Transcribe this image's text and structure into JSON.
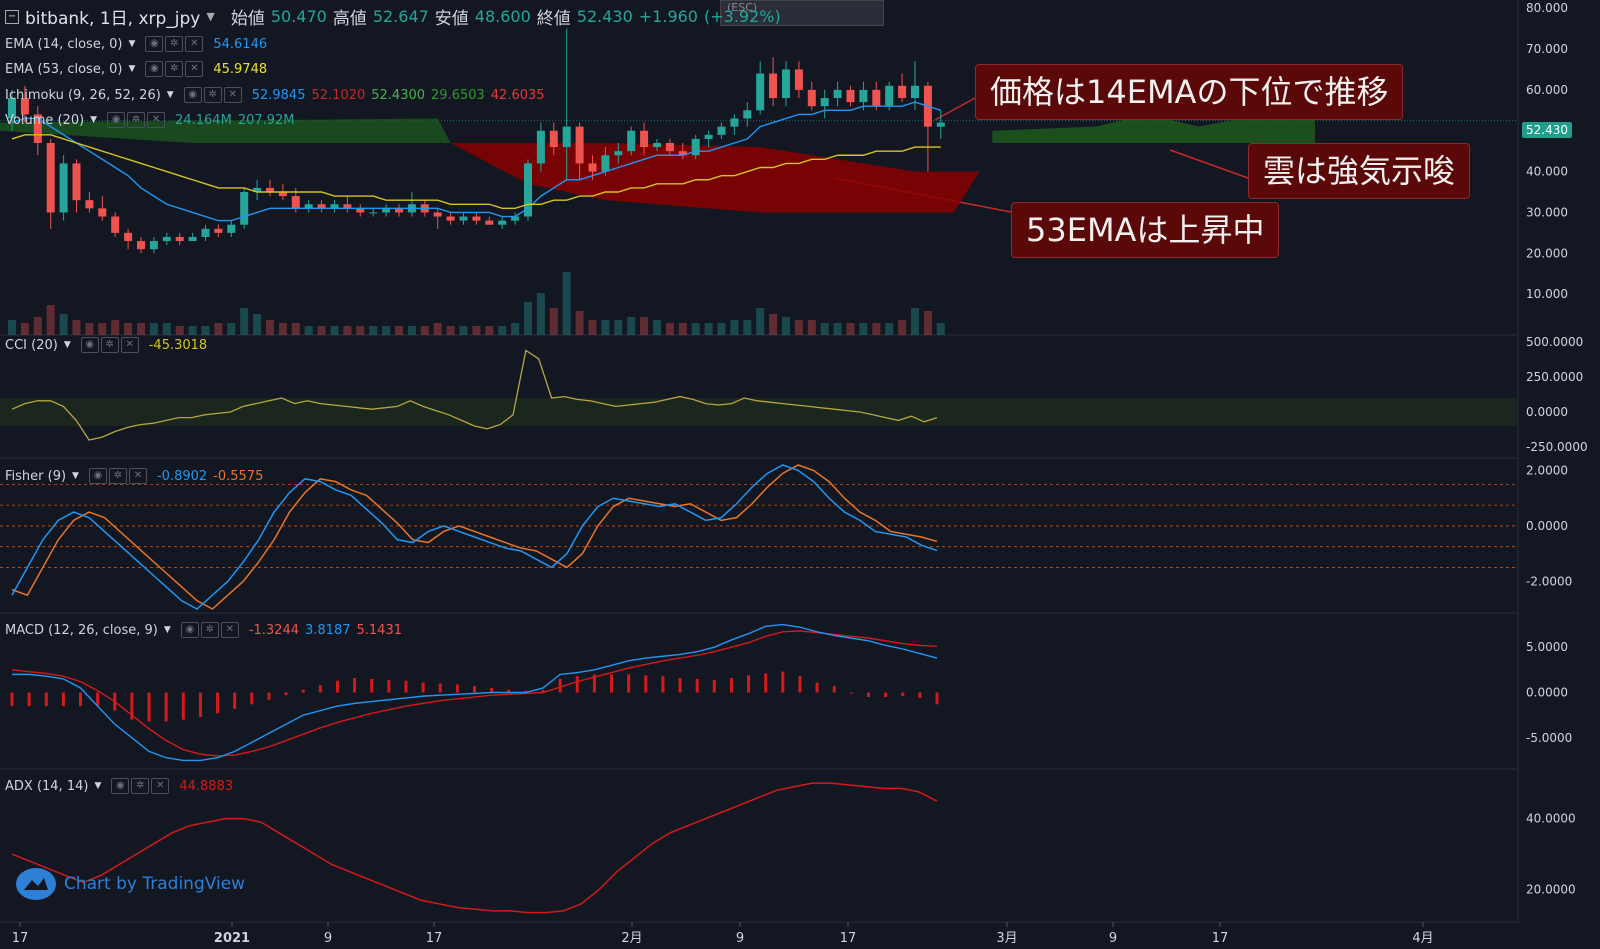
{
  "header": {
    "symbol": "bitbank, 1日, xrp_jpy",
    "open_label": "始値",
    "open": "50.470",
    "high_label": "高値",
    "high": "52.647",
    "low_label": "安値",
    "low": "48.600",
    "close_label": "終値",
    "close": "52.430",
    "change": "+1.960",
    "change_pct": "(+3.92%)",
    "esc_hint": "(ESC)"
  },
  "legend": {
    "ema14": {
      "label": "EMA (14, close, 0)",
      "value": "54.6146"
    },
    "ema53": {
      "label": "EMA (53, close, 0)",
      "value": "45.9748"
    },
    "ichimoku": {
      "label": "Ichimoku (9, 26, 52, 26)",
      "v1": "52.9845",
      "v2": "52.1020",
      "v3": "52.4300",
      "v4": "29.6503",
      "v5": "42.6035"
    },
    "volume": {
      "label": "Volume (20)",
      "v1": "24.164M",
      "v2": "207.92M"
    },
    "cci": {
      "label": "CCI (20)",
      "value": "-45.3018"
    },
    "fisher": {
      "label": "Fisher (9)",
      "v1": "-0.8902",
      "v2": "-0.5575"
    },
    "macd": {
      "label": "MACD (12, 26, close, 9)",
      "v1": "-1.3244",
      "v2": "3.8187",
      "v3": "5.1431"
    },
    "adx": {
      "label": "ADX (14, 14)",
      "value": "44.8883"
    }
  },
  "last_price_tag": "52.430",
  "callouts": {
    "c1": "価格は14EMAの下位で推移",
    "c2": "雲は強気示唆",
    "c3": "53EMAは上昇中"
  },
  "watermark": "Chart by TradingView",
  "colors": {
    "up": "#26a69a",
    "down": "#ef5350",
    "ema14": "#2196f3",
    "ema53": "#d4c423",
    "cloud_bull": "#1e5f1e",
    "cloud_bear": "#8b0000",
    "cci": "#b5a642",
    "fisher1": "#2196f3",
    "fisher2": "#e8742a",
    "adx": "#d41a1a"
  },
  "chart_data": [
    {
      "type": "candlestick",
      "title": "bitbank, 1日, xrp_jpy",
      "x_ticks": [
        "17",
        "2021",
        "9",
        "17",
        "2月",
        "9",
        "17",
        "3月",
        "9",
        "17",
        "4月"
      ],
      "y_ticks": [
        "10.000",
        "20.000",
        "30.000",
        "40.000",
        "50.000",
        "60.000",
        "70.000",
        "80.000"
      ],
      "ylim": [
        0,
        82
      ],
      "candles": [
        [
          53,
          60,
          50,
          58
        ],
        [
          58,
          61,
          52,
          54
        ],
        [
          54,
          56,
          44,
          47
        ],
        [
          47,
          48,
          26,
          30
        ],
        [
          30,
          44,
          28,
          42
        ],
        [
          42,
          43,
          30,
          33
        ],
        [
          33,
          35,
          30,
          31
        ],
        [
          31,
          34,
          28,
          29
        ],
        [
          29,
          30,
          24,
          25
        ],
        [
          25,
          26,
          21,
          23
        ],
        [
          23,
          24,
          20,
          21
        ],
        [
          21,
          24,
          20,
          23
        ],
        [
          23,
          25,
          22,
          24
        ],
        [
          24,
          25,
          22,
          23
        ],
        [
          23,
          25,
          23,
          24
        ],
        [
          24,
          27,
          23,
          26
        ],
        [
          26,
          27,
          24,
          25
        ],
        [
          25,
          28,
          24,
          27
        ],
        [
          27,
          36,
          26,
          35
        ],
        [
          35,
          38,
          33,
          36
        ],
        [
          36,
          38,
          34,
          35
        ],
        [
          35,
          37,
          33,
          34
        ],
        [
          34,
          36,
          30,
          31
        ],
        [
          31,
          33,
          30,
          32
        ],
        [
          32,
          33,
          30,
          31
        ],
        [
          31,
          33,
          30,
          32
        ],
        [
          32,
          34,
          30,
          31
        ],
        [
          31,
          32,
          29,
          30
        ],
        [
          30,
          31,
          29,
          30
        ],
        [
          30,
          32,
          29,
          31
        ],
        [
          31,
          32,
          29,
          30
        ],
        [
          30,
          35,
          29,
          32
        ],
        [
          32,
          33,
          29,
          30
        ],
        [
          30,
          31,
          26,
          29
        ],
        [
          29,
          30,
          27,
          28
        ],
        [
          28,
          30,
          27,
          29
        ],
        [
          29,
          30,
          27,
          28
        ],
        [
          28,
          29,
          27,
          27
        ],
        [
          27,
          29,
          26,
          28
        ],
        [
          28,
          30,
          27,
          29
        ],
        [
          29,
          43,
          28,
          42
        ],
        [
          42,
          52,
          40,
          50
        ],
        [
          50,
          52,
          44,
          46
        ],
        [
          46,
          75,
          38,
          51
        ],
        [
          51,
          52,
          38,
          42
        ],
        [
          42,
          44,
          38,
          40
        ],
        [
          40,
          46,
          39,
          44
        ],
        [
          44,
          47,
          42,
          45
        ],
        [
          45,
          51,
          44,
          50
        ],
        [
          50,
          52,
          44,
          46
        ],
        [
          46,
          48,
          45,
          47
        ],
        [
          47,
          48,
          44,
          45
        ],
        [
          45,
          47,
          43,
          44
        ],
        [
          44,
          49,
          43,
          48
        ],
        [
          48,
          50,
          46,
          49
        ],
        [
          49,
          52,
          48,
          51
        ],
        [
          51,
          54,
          49,
          53
        ],
        [
          53,
          57,
          51,
          55
        ],
        [
          55,
          67,
          54,
          64
        ],
        [
          64,
          68,
          56,
          58
        ],
        [
          58,
          67,
          56,
          65
        ],
        [
          65,
          67,
          58,
          60
        ],
        [
          60,
          62,
          55,
          56
        ],
        [
          56,
          60,
          53,
          58
        ],
        [
          58,
          62,
          56,
          60
        ],
        [
          60,
          61,
          56,
          57
        ],
        [
          57,
          62,
          55,
          60
        ],
        [
          60,
          62,
          55,
          56
        ],
        [
          56,
          62,
          55,
          61
        ],
        [
          61,
          64,
          57,
          58
        ],
        [
          58,
          67,
          55,
          61
        ],
        [
          61,
          62,
          40,
          51
        ],
        [
          51,
          55,
          48,
          52
        ]
      ],
      "series": [
        {
          "name": "EMA (14, close, 0)",
          "values": [
            52,
            53,
            53,
            51,
            49,
            47,
            45,
            43,
            41,
            39,
            36,
            34,
            32,
            31,
            30,
            29,
            28,
            28,
            29,
            30,
            31,
            31,
            31,
            31,
            31,
            31,
            31,
            31,
            31,
            31,
            31,
            31,
            31,
            31,
            30,
            30,
            30,
            30,
            29,
            29,
            31,
            34,
            36,
            38,
            38,
            39,
            40,
            41,
            42,
            43,
            44,
            44,
            44,
            45,
            45,
            46,
            47,
            48,
            51,
            52,
            53,
            54,
            54,
            55,
            55,
            55,
            56,
            56,
            56,
            56,
            57,
            56,
            55
          ]
        },
        {
          "name": "EMA (53, close, 0)",
          "values": [
            48,
            49,
            49,
            49,
            48,
            47,
            46,
            45,
            44,
            43,
            42,
            41,
            40,
            39,
            38,
            37,
            36,
            36,
            36,
            35,
            35,
            35,
            35,
            35,
            35,
            34,
            34,
            34,
            34,
            33,
            33,
            33,
            33,
            33,
            32,
            32,
            32,
            32,
            31,
            31,
            32,
            32,
            33,
            33,
            34,
            34,
            35,
            35,
            36,
            36,
            37,
            37,
            37,
            38,
            38,
            39,
            39,
            40,
            41,
            41,
            42,
            42,
            43,
            43,
            44,
            44,
            44,
            45,
            45,
            45,
            46,
            46,
            46
          ]
        }
      ],
      "volume": [
        5,
        4,
        6,
        10,
        7,
        5,
        4,
        4,
        5,
        4,
        4,
        4,
        4,
        3,
        3,
        3,
        4,
        4,
        9,
        7,
        5,
        4,
        4,
        3,
        3,
        3,
        3,
        3,
        3,
        3,
        3,
        3,
        3,
        4,
        3,
        3,
        3,
        3,
        3,
        4,
        11,
        14,
        9,
        21,
        8,
        5,
        5,
        5,
        6,
        6,
        5,
        4,
        4,
        4,
        4,
        4,
        5,
        5,
        9,
        7,
        6,
        5,
        5,
        4,
        4,
        4,
        4,
        4,
        4,
        5,
        9,
        8,
        4
      ],
      "annotations": [
        "価格は14EMAの下位で推移",
        "雲は強気示唆",
        "53EMAは上昇中"
      ]
    },
    {
      "type": "line",
      "title": "CCI (20)",
      "y_ticks": [
        "500.0000",
        "250.0000",
        "0.0000",
        "-250.0000"
      ],
      "ylim": [
        -300,
        500
      ],
      "values": [
        20,
        60,
        80,
        80,
        40,
        -60,
        -200,
        -180,
        -140,
        -110,
        -90,
        -80,
        -60,
        -40,
        -40,
        -20,
        -10,
        0,
        40,
        60,
        80,
        100,
        60,
        80,
        60,
        50,
        40,
        30,
        20,
        30,
        40,
        80,
        40,
        10,
        -20,
        -60,
        -100,
        -120,
        -90,
        -20,
        440,
        380,
        100,
        110,
        90,
        80,
        60,
        40,
        50,
        60,
        70,
        90,
        110,
        90,
        60,
        50,
        60,
        100,
        80,
        70,
        60,
        50,
        40,
        30,
        20,
        10,
        0,
        -20,
        -40,
        -60,
        -30,
        -70,
        -40
      ]
    },
    {
      "type": "line",
      "title": "Fisher (9)",
      "y_ticks": [
        "2.0000",
        "0.0000",
        "-2.0000"
      ],
      "ylim": [
        -3,
        2.2
      ],
      "series": [
        {
          "name": "Fisher",
          "values": [
            -2.5,
            -1.5,
            -0.5,
            0.2,
            0.5,
            0.3,
            -0.2,
            -0.7,
            -1.2,
            -1.7,
            -2.2,
            -2.7,
            -3.0,
            -2.5,
            -2.0,
            -1.3,
            -0.5,
            0.5,
            1.2,
            1.7,
            1.6,
            1.3,
            1.1,
            0.6,
            0.1,
            -0.5,
            -0.6,
            -0.2,
            0.0,
            -0.2,
            -0.4,
            -0.6,
            -0.8,
            -0.9,
            -1.2,
            -1.5,
            -1.0,
            0.0,
            0.7,
            1.0,
            0.9,
            0.8,
            0.7,
            0.8,
            0.5,
            0.2,
            0.3,
            0.8,
            1.4,
            1.9,
            2.2,
            2.0,
            1.6,
            1.0,
            0.5,
            0.2,
            -0.2,
            -0.3,
            -0.4,
            -0.7,
            -0.89
          ]
        },
        {
          "name": "Trigger",
          "values": [
            -2.3,
            -2.5,
            -1.5,
            -0.5,
            0.2,
            0.5,
            0.3,
            -0.2,
            -0.7,
            -1.2,
            -1.7,
            -2.2,
            -2.7,
            -3.0,
            -2.5,
            -2.0,
            -1.3,
            -0.5,
            0.5,
            1.2,
            1.7,
            1.6,
            1.3,
            1.1,
            0.6,
            0.1,
            -0.5,
            -0.6,
            -0.2,
            0.0,
            -0.2,
            -0.4,
            -0.6,
            -0.8,
            -0.9,
            -1.2,
            -1.5,
            -1.0,
            0.0,
            0.7,
            1.0,
            0.9,
            0.8,
            0.7,
            0.8,
            0.5,
            0.2,
            0.3,
            0.8,
            1.4,
            1.9,
            2.2,
            2.0,
            1.6,
            1.0,
            0.5,
            0.2,
            -0.2,
            -0.3,
            -0.4,
            -0.56
          ]
        }
      ],
      "levels": [
        1.5,
        0.75,
        0,
        -0.75,
        -1.5
      ]
    },
    {
      "type": "line",
      "title": "MACD (12, 26, close, 9)",
      "y_ticks": [
        "5.0000",
        "0.0000",
        "-5.0000"
      ],
      "ylim": [
        -8,
        8
      ],
      "series": [
        {
          "name": "MACD",
          "values": [
            2,
            2,
            1.8,
            1.5,
            0.5,
            -1.5,
            -3.5,
            -5,
            -6.5,
            -7.2,
            -7.5,
            -7.5,
            -7.2,
            -6.5,
            -5.5,
            -4.5,
            -3.5,
            -2.5,
            -2,
            -1.5,
            -1.2,
            -1,
            -0.8,
            -0.6,
            -0.4,
            -0.3,
            -0.2,
            -0.1,
            0,
            0,
            0,
            0.5,
            2,
            2.2,
            2.5,
            3,
            3.5,
            3.8,
            4,
            4.2,
            4.5,
            5,
            5.8,
            6.5,
            7.3,
            7.5,
            7.2,
            6.7,
            6.3,
            6,
            5.7,
            5.2,
            4.8,
            4.3,
            3.8
          ]
        },
        {
          "name": "Signal",
          "values": [
            2.5,
            2.3,
            2.1,
            1.8,
            1.2,
            0.2,
            -1,
            -2.5,
            -4,
            -5.3,
            -6.3,
            -6.8,
            -7,
            -6.9,
            -6.5,
            -6,
            -5.3,
            -4.6,
            -3.9,
            -3.3,
            -2.8,
            -2.3,
            -1.9,
            -1.5,
            -1.2,
            -0.9,
            -0.7,
            -0.5,
            -0.3,
            -0.2,
            -0.1,
            0,
            0.6,
            1.2,
            1.7,
            2.2,
            2.7,
            3.1,
            3.5,
            3.8,
            4.1,
            4.5,
            5,
            5.5,
            6.2,
            6.7,
            6.8,
            6.6,
            6.4,
            6.2,
            6,
            5.7,
            5.4,
            5.2,
            5.1
          ]
        }
      ],
      "histogram": [
        -1.5,
        -1.5,
        -1.5,
        -1.5,
        -1.5,
        -1.5,
        -2,
        -3,
        -3.2,
        -3.2,
        -3,
        -2.7,
        -2.3,
        -1.8,
        -1.3,
        -0.8,
        -0.3,
        0.3,
        0.8,
        1.3,
        1.6,
        1.5,
        1.4,
        1.3,
        1.1,
        1,
        0.9,
        0.7,
        0.5,
        0.3,
        0.2,
        0.3,
        1.5,
        1.8,
        2,
        2,
        2,
        1.9,
        1.8,
        1.6,
        1.5,
        1.4,
        1.6,
        1.9,
        2.1,
        2.3,
        1.8,
        1.1,
        0.7,
        0,
        -0.5,
        -0.5,
        -0.4,
        -0.6,
        -1.3
      ]
    },
    {
      "type": "line",
      "title": "ADX (14, 14)",
      "y_ticks": [
        "40.0000",
        "20.0000"
      ],
      "ylim": [
        12,
        52
      ],
      "values": [
        30,
        28,
        26,
        24,
        22,
        24,
        27,
        30,
        33,
        36,
        38,
        39,
        40,
        40,
        39,
        36,
        33,
        30,
        27,
        25,
        23,
        21,
        19,
        17,
        16,
        15,
        14.5,
        14,
        14,
        13.5,
        13.5,
        14,
        16,
        20,
        25,
        29,
        33,
        36,
        38,
        40,
        42,
        44,
        46,
        48,
        49,
        50,
        50,
        49.5,
        49,
        48.5,
        48.5,
        47.5,
        44.9
      ]
    }
  ]
}
